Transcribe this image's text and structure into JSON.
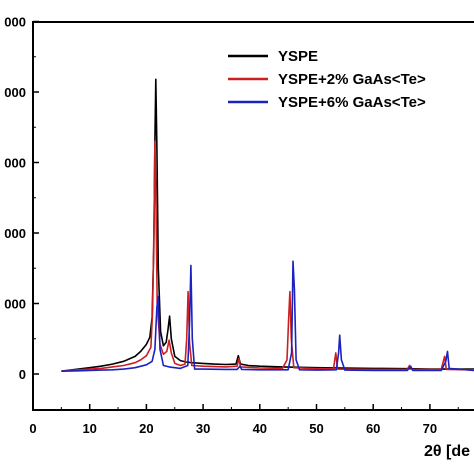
{
  "chart_data": {
    "type": "line",
    "title": "",
    "xlabel": "2θ [de",
    "ylabel": "",
    "xlim": [
      0,
      80
    ],
    "ylim": [
      -500,
      5000
    ],
    "x_ticks": [
      0,
      10,
      20,
      30,
      40,
      50,
      60,
      70
    ],
    "y_ticks": [
      0,
      1000,
      2000,
      3000,
      4000,
      5000
    ],
    "y_tick_labels": [
      "0",
      "000",
      "000",
      "000",
      "000",
      "000"
    ],
    "grid": false,
    "legend_position": "top-right",
    "series": [
      {
        "name": "YSPE",
        "color": "#000000",
        "points": [
          [
            5,
            40
          ],
          [
            8,
            70
          ],
          [
            10,
            90
          ],
          [
            12,
            110
          ],
          [
            14,
            140
          ],
          [
            16,
            180
          ],
          [
            18,
            250
          ],
          [
            19,
            320
          ],
          [
            20,
            420
          ],
          [
            20.6,
            520
          ],
          [
            21.0,
            800
          ],
          [
            21.3,
            1800
          ],
          [
            21.5,
            3300
          ],
          [
            21.65,
            4180
          ],
          [
            21.85,
            3200
          ],
          [
            22.1,
            1500
          ],
          [
            22.5,
            600
          ],
          [
            23.0,
            400
          ],
          [
            23.5,
            450
          ],
          [
            23.8,
            620
          ],
          [
            24.1,
            820
          ],
          [
            24.4,
            500
          ],
          [
            25,
            250
          ],
          [
            26,
            190
          ],
          [
            27,
            170
          ],
          [
            28,
            160
          ],
          [
            30,
            150
          ],
          [
            32,
            140
          ],
          [
            34,
            135
          ],
          [
            35.8,
            140
          ],
          [
            36.2,
            260
          ],
          [
            36.6,
            140
          ],
          [
            38,
            120
          ],
          [
            40,
            110
          ],
          [
            44,
            100
          ],
          [
            50,
            90
          ],
          [
            55,
            85
          ],
          [
            60,
            80
          ],
          [
            66,
            75
          ],
          [
            70,
            70
          ],
          [
            74,
            70
          ],
          [
            78,
            70
          ]
        ]
      },
      {
        "name": "YSPE+2% GaAs<Te>",
        "color": "#cc2020",
        "points": [
          [
            5,
            40
          ],
          [
            8,
            60
          ],
          [
            10,
            70
          ],
          [
            12,
            80
          ],
          [
            14,
            100
          ],
          [
            16,
            120
          ],
          [
            18,
            160
          ],
          [
            19,
            200
          ],
          [
            20,
            260
          ],
          [
            20.8,
            380
          ],
          [
            21.1,
            900
          ],
          [
            21.35,
            2200
          ],
          [
            21.5,
            3300
          ],
          [
            21.65,
            2600
          ],
          [
            21.9,
            1000
          ],
          [
            22.4,
            420
          ],
          [
            23.0,
            280
          ],
          [
            23.6,
            320
          ],
          [
            24.0,
            480
          ],
          [
            24.4,
            300
          ],
          [
            25,
            150
          ],
          [
            26,
            120
          ],
          [
            26.8,
            140
          ],
          [
            27.1,
            500
          ],
          [
            27.35,
            1170
          ],
          [
            27.6,
            450
          ],
          [
            28,
            120
          ],
          [
            30,
            110
          ],
          [
            34,
            100
          ],
          [
            36,
            110
          ],
          [
            36.3,
            220
          ],
          [
            36.6,
            100
          ],
          [
            40,
            85
          ],
          [
            44,
            80
          ],
          [
            44.8,
            200
          ],
          [
            45.1,
            800
          ],
          [
            45.3,
            1170
          ],
          [
            45.55,
            500
          ],
          [
            46,
            90
          ],
          [
            50,
            75
          ],
          [
            53,
            75
          ],
          [
            53.4,
            300
          ],
          [
            53.7,
            70
          ],
          [
            60,
            65
          ],
          [
            66,
            65
          ],
          [
            66.4,
            120
          ],
          [
            66.8,
            65
          ],
          [
            72,
            65
          ],
          [
            72.6,
            250
          ],
          [
            72.9,
            65
          ],
          [
            78,
            60
          ]
        ]
      },
      {
        "name": "YSPE+6% GaAs<Te>",
        "color": "#1c22c0",
        "points": [
          [
            5,
            40
          ],
          [
            8,
            45
          ],
          [
            10,
            50
          ],
          [
            12,
            55
          ],
          [
            14,
            60
          ],
          [
            16,
            70
          ],
          [
            18,
            90
          ],
          [
            20,
            130
          ],
          [
            21.0,
            180
          ],
          [
            21.5,
            350
          ],
          [
            21.85,
            950
          ],
          [
            22.1,
            1100
          ],
          [
            22.4,
            350
          ],
          [
            23.0,
            120
          ],
          [
            24,
            100
          ],
          [
            26,
            80
          ],
          [
            27.3,
            120
          ],
          [
            27.6,
            700
          ],
          [
            27.85,
            1540
          ],
          [
            28.1,
            500
          ],
          [
            28.5,
            70
          ],
          [
            30,
            70
          ],
          [
            34,
            65
          ],
          [
            36,
            65
          ],
          [
            36.5,
            110
          ],
          [
            36.8,
            65
          ],
          [
            40,
            60
          ],
          [
            45,
            60
          ],
          [
            45.6,
            300
          ],
          [
            45.85,
            1600
          ],
          [
            46.1,
            1200
          ],
          [
            46.4,
            200
          ],
          [
            47,
            60
          ],
          [
            50,
            55
          ],
          [
            53.5,
            60
          ],
          [
            53.9,
            300
          ],
          [
            54.1,
            550
          ],
          [
            54.4,
            200
          ],
          [
            55,
            55
          ],
          [
            60,
            50
          ],
          [
            66,
            50
          ],
          [
            66.6,
            110
          ],
          [
            67,
            50
          ],
          [
            72,
            50
          ],
          [
            72.8,
            180
          ],
          [
            73.1,
            320
          ],
          [
            73.4,
            80
          ],
          [
            78,
            50
          ]
        ]
      }
    ]
  }
}
